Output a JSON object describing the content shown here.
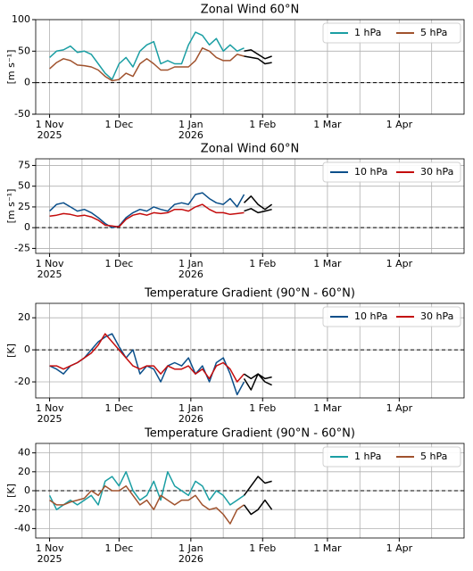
{
  "chart_data": [
    {
      "type": "line",
      "title": "Zonal Wind 60°N",
      "ylabel": "[m s⁻¹]",
      "x": [
        "2025-11-01",
        "2025-11-04",
        "2025-11-07",
        "2025-11-10",
        "2025-11-13",
        "2025-11-16",
        "2025-11-19",
        "2025-11-22",
        "2025-11-25",
        "2025-11-28",
        "2025-12-01",
        "2025-12-04",
        "2025-12-07",
        "2025-12-10",
        "2025-12-13",
        "2025-12-16",
        "2025-12-19",
        "2025-12-22",
        "2025-12-25",
        "2025-12-28",
        "2025-12-31",
        "2026-01-03",
        "2026-01-06",
        "2026-01-09",
        "2026-01-12",
        "2026-01-15",
        "2026-01-18",
        "2026-01-21",
        "2026-01-24",
        "2026-01-27",
        "2026-01-30",
        "2026-02-02",
        "2026-02-05"
      ],
      "series": [
        {
          "name": "1 hPa",
          "color": "#1a9ea3",
          "values": [
            40,
            50,
            52,
            58,
            48,
            50,
            45,
            30,
            15,
            5,
            30,
            40,
            25,
            50,
            60,
            65,
            30,
            35,
            30,
            30,
            60,
            80,
            75,
            60,
            70,
            50,
            60,
            50,
            55,
            null,
            null,
            null,
            null
          ]
        },
        {
          "name": "5 hPa",
          "color": "#a0522d",
          "values": [
            22,
            32,
            38,
            35,
            28,
            27,
            25,
            20,
            10,
            3,
            5,
            15,
            10,
            30,
            38,
            30,
            20,
            20,
            25,
            25,
            25,
            35,
            55,
            50,
            40,
            35,
            35,
            45,
            42,
            null,
            null,
            null,
            null
          ]
        },
        {
          "color": "#000000",
          "values": [
            null,
            null,
            null,
            null,
            null,
            null,
            null,
            null,
            null,
            null,
            null,
            null,
            null,
            null,
            null,
            null,
            null,
            null,
            null,
            null,
            null,
            null,
            null,
            null,
            null,
            null,
            null,
            null,
            50,
            52,
            45,
            38,
            42
          ]
        },
        {
          "color": "#000000",
          "values": [
            null,
            null,
            null,
            null,
            null,
            null,
            null,
            null,
            null,
            null,
            null,
            null,
            null,
            null,
            null,
            null,
            null,
            null,
            null,
            null,
            null,
            null,
            null,
            null,
            null,
            null,
            null,
            null,
            42,
            40,
            38,
            30,
            32
          ]
        }
      ],
      "xlim": [
        "2025-10-26",
        "2026-04-29"
      ],
      "xticks": [
        {
          "value": "2025-11-01",
          "label": "1 Nov\n2025"
        },
        {
          "value": "2025-12-01",
          "label": "1 Dec"
        },
        {
          "value": "2026-01-01",
          "label": "1 Jan\n2026"
        },
        {
          "value": "2026-02-01",
          "label": "1 Feb"
        },
        {
          "value": "2026-03-01",
          "label": "1 Mar"
        },
        {
          "value": "2026-04-01",
          "label": "1 Apr"
        }
      ],
      "xminorticks": [
        "2025-11-15",
        "2025-12-15",
        "2026-01-15",
        "2026-02-15",
        "2026-03-15",
        "2026-04-15"
      ],
      "ylim": [
        -50,
        100
      ],
      "yticks": [
        -50,
        0,
        50,
        100
      ],
      "hline": 0,
      "grid": true,
      "legend": "upper right"
    },
    {
      "type": "line",
      "title": "Zonal Wind 60°N",
      "ylabel": "[m s⁻¹]",
      "x": [
        "2025-11-01",
        "2025-11-04",
        "2025-11-07",
        "2025-11-10",
        "2025-11-13",
        "2025-11-16",
        "2025-11-19",
        "2025-11-22",
        "2025-11-25",
        "2025-11-28",
        "2025-12-01",
        "2025-12-04",
        "2025-12-07",
        "2025-12-10",
        "2025-12-13",
        "2025-12-16",
        "2025-12-19",
        "2025-12-22",
        "2025-12-25",
        "2025-12-28",
        "2025-12-31",
        "2026-01-03",
        "2026-01-06",
        "2026-01-09",
        "2026-01-12",
        "2026-01-15",
        "2026-01-18",
        "2026-01-21",
        "2026-01-24",
        "2026-01-27",
        "2026-01-30",
        "2026-02-02",
        "2026-02-05"
      ],
      "series": [
        {
          "name": "10 hPa",
          "color": "#0b4f8a",
          "values": [
            20,
            28,
            30,
            25,
            20,
            22,
            18,
            12,
            5,
            0,
            2,
            12,
            18,
            22,
            20,
            25,
            22,
            20,
            28,
            30,
            28,
            40,
            42,
            35,
            30,
            28,
            35,
            25,
            40,
            null,
            null,
            null,
            null
          ]
        },
        {
          "name": "30 hPa",
          "color": "#c40c0c",
          "values": [
            14,
            15,
            17,
            16,
            14,
            15,
            13,
            9,
            3,
            2,
            1,
            10,
            15,
            17,
            15,
            18,
            17,
            18,
            22,
            22,
            20,
            25,
            28,
            22,
            18,
            18,
            16,
            17,
            18,
            null,
            null,
            null,
            null
          ]
        },
        {
          "color": "#000000",
          "values": [
            null,
            null,
            null,
            null,
            null,
            null,
            null,
            null,
            null,
            null,
            null,
            null,
            null,
            null,
            null,
            null,
            null,
            null,
            null,
            null,
            null,
            null,
            null,
            null,
            null,
            null,
            null,
            null,
            30,
            38,
            28,
            22,
            28
          ]
        },
        {
          "color": "#000000",
          "values": [
            null,
            null,
            null,
            null,
            null,
            null,
            null,
            null,
            null,
            null,
            null,
            null,
            null,
            null,
            null,
            null,
            null,
            null,
            null,
            null,
            null,
            null,
            null,
            null,
            null,
            null,
            null,
            null,
            20,
            23,
            18,
            20,
            22
          ]
        }
      ],
      "xlim": [
        "2025-10-26",
        "2026-04-29"
      ],
      "xticks": [
        {
          "value": "2025-11-01",
          "label": "1 Nov\n2025"
        },
        {
          "value": "2025-12-01",
          "label": "1 Dec"
        },
        {
          "value": "2026-01-01",
          "label": "1 Jan\n2026"
        },
        {
          "value": "2026-02-01",
          "label": "1 Feb"
        },
        {
          "value": "2026-03-01",
          "label": "1 Mar"
        },
        {
          "value": "2026-04-01",
          "label": "1 Apr"
        }
      ],
      "xminorticks": [
        "2025-11-15",
        "2025-12-15",
        "2026-01-15",
        "2026-02-15",
        "2026-03-15",
        "2026-04-15"
      ],
      "ylim": [
        -31,
        83
      ],
      "yticks": [
        -25,
        0,
        25,
        50,
        75
      ],
      "hline": 0,
      "grid": true,
      "legend": "upper right"
    },
    {
      "type": "line",
      "title": "Temperature Gradient (90°N - 60°N)",
      "ylabel": "[K]",
      "x": [
        "2025-11-01",
        "2025-11-04",
        "2025-11-07",
        "2025-11-10",
        "2025-11-13",
        "2025-11-16",
        "2025-11-19",
        "2025-11-22",
        "2025-11-25",
        "2025-11-28",
        "2025-12-01",
        "2025-12-04",
        "2025-12-07",
        "2025-12-10",
        "2025-12-13",
        "2025-12-16",
        "2025-12-19",
        "2025-12-22",
        "2025-12-25",
        "2025-12-28",
        "2025-12-31",
        "2026-01-03",
        "2026-01-06",
        "2026-01-09",
        "2026-01-12",
        "2026-01-15",
        "2026-01-18",
        "2026-01-21",
        "2026-01-24",
        "2026-01-27",
        "2026-01-30",
        "2026-02-02",
        "2026-02-05"
      ],
      "series": [
        {
          "name": "10 hPa",
          "color": "#0b4f8a",
          "values": [
            -10,
            -12,
            -15,
            -10,
            -8,
            -5,
            0,
            5,
            8,
            10,
            2,
            -5,
            0,
            -15,
            -10,
            -12,
            -20,
            -10,
            -8,
            -10,
            -5,
            -15,
            -10,
            -20,
            -8,
            -5,
            -15,
            -28,
            -20,
            null,
            null,
            null,
            null
          ]
        },
        {
          "name": "30 hPa",
          "color": "#c40c0c",
          "values": [
            -10,
            -10,
            -12,
            -10,
            -8,
            -5,
            -2,
            3,
            10,
            5,
            0,
            -5,
            -10,
            -12,
            -10,
            -10,
            -15,
            -10,
            -12,
            -12,
            -10,
            -15,
            -12,
            -18,
            -10,
            -8,
            -12,
            -20,
            -15,
            null,
            null,
            null,
            null
          ]
        },
        {
          "color": "#000000",
          "values": [
            null,
            null,
            null,
            null,
            null,
            null,
            null,
            null,
            null,
            null,
            null,
            null,
            null,
            null,
            null,
            null,
            null,
            null,
            null,
            null,
            null,
            null,
            null,
            null,
            null,
            null,
            null,
            null,
            -18,
            -25,
            -15,
            -20,
            -22
          ]
        },
        {
          "color": "#000000",
          "values": [
            null,
            null,
            null,
            null,
            null,
            null,
            null,
            null,
            null,
            null,
            null,
            null,
            null,
            null,
            null,
            null,
            null,
            null,
            null,
            null,
            null,
            null,
            null,
            null,
            null,
            null,
            null,
            null,
            -15,
            -18,
            -15,
            -18,
            -17
          ]
        }
      ],
      "xlim": [
        "2025-10-26",
        "2026-04-29"
      ],
      "xticks": [
        {
          "value": "2025-11-01",
          "label": "1 Nov\n2025"
        },
        {
          "value": "2025-12-01",
          "label": "1 Dec"
        },
        {
          "value": "2026-01-01",
          "label": "1 Jan\n2026"
        },
        {
          "value": "2026-02-01",
          "label": "1 Feb"
        },
        {
          "value": "2026-03-01",
          "label": "1 Mar"
        },
        {
          "value": "2026-04-01",
          "label": "1 Apr"
        }
      ],
      "xminorticks": [
        "2025-11-15",
        "2025-12-15",
        "2026-01-15",
        "2026-02-15",
        "2026-03-15",
        "2026-04-15"
      ],
      "ylim": [
        -30,
        29
      ],
      "yticks": [
        -20,
        0,
        20
      ],
      "hline": 0,
      "grid": true,
      "legend": "upper right"
    },
    {
      "type": "line",
      "title": "Temperature Gradient (90°N - 60°N)",
      "ylabel": "[K]",
      "x": [
        "2025-11-01",
        "2025-11-04",
        "2025-11-07",
        "2025-11-10",
        "2025-11-13",
        "2025-11-16",
        "2025-11-19",
        "2025-11-22",
        "2025-11-25",
        "2025-11-28",
        "2025-12-01",
        "2025-12-04",
        "2025-12-07",
        "2025-12-10",
        "2025-12-13",
        "2025-12-16",
        "2025-12-19",
        "2025-12-22",
        "2025-12-25",
        "2025-12-28",
        "2025-12-31",
        "2026-01-03",
        "2026-01-06",
        "2026-01-09",
        "2026-01-12",
        "2026-01-15",
        "2026-01-18",
        "2026-01-21",
        "2026-01-24",
        "2026-01-27",
        "2026-01-30",
        "2026-02-02",
        "2026-02-05"
      ],
      "series": [
        {
          "name": "1 hPa",
          "color": "#1a9ea3",
          "values": [
            -5,
            -20,
            -15,
            -10,
            -15,
            -10,
            -5,
            -15,
            10,
            15,
            5,
            20,
            0,
            -10,
            -5,
            10,
            -10,
            20,
            5,
            0,
            -5,
            10,
            5,
            -10,
            0,
            -5,
            -15,
            -10,
            -5,
            null,
            null,
            null,
            null
          ]
        },
        {
          "name": "5 hPa",
          "color": "#a0522d",
          "values": [
            -10,
            -15,
            -15,
            -12,
            -10,
            -8,
            0,
            -5,
            5,
            0,
            0,
            5,
            -5,
            -15,
            -10,
            -20,
            -5,
            -10,
            -15,
            -10,
            -10,
            -5,
            -15,
            -20,
            -18,
            -25,
            -35,
            -20,
            -15,
            null,
            null,
            null,
            null
          ]
        },
        {
          "color": "#000000",
          "values": [
            null,
            null,
            null,
            null,
            null,
            null,
            null,
            null,
            null,
            null,
            null,
            null,
            null,
            null,
            null,
            null,
            null,
            null,
            null,
            null,
            null,
            null,
            null,
            null,
            null,
            null,
            null,
            null,
            -5,
            5,
            15,
            8,
            10
          ]
        },
        {
          "color": "#000000",
          "values": [
            null,
            null,
            null,
            null,
            null,
            null,
            null,
            null,
            null,
            null,
            null,
            null,
            null,
            null,
            null,
            null,
            null,
            null,
            null,
            null,
            null,
            null,
            null,
            null,
            null,
            null,
            null,
            null,
            -15,
            -25,
            -20,
            -10,
            -20
          ]
        }
      ],
      "xlim": [
        "2025-10-26",
        "2026-04-29"
      ],
      "xticks": [
        {
          "value": "2025-11-01",
          "label": "1 Nov\n2025"
        },
        {
          "value": "2025-12-01",
          "label": "1 Dec"
        },
        {
          "value": "2026-01-01",
          "label": "1 Jan\n2026"
        },
        {
          "value": "2026-02-01",
          "label": "1 Feb"
        },
        {
          "value": "2026-03-01",
          "label": "1 Mar"
        },
        {
          "value": "2026-04-01",
          "label": "1 Apr"
        }
      ],
      "xminorticks": [
        "2025-11-15",
        "2025-12-15",
        "2026-01-15",
        "2026-02-15",
        "2026-03-15",
        "2026-04-15"
      ],
      "ylim": [
        -50,
        50
      ],
      "yticks": [
        -40,
        -20,
        0,
        20,
        40
      ],
      "hline": 0,
      "grid": true,
      "legend": "upper right"
    }
  ]
}
